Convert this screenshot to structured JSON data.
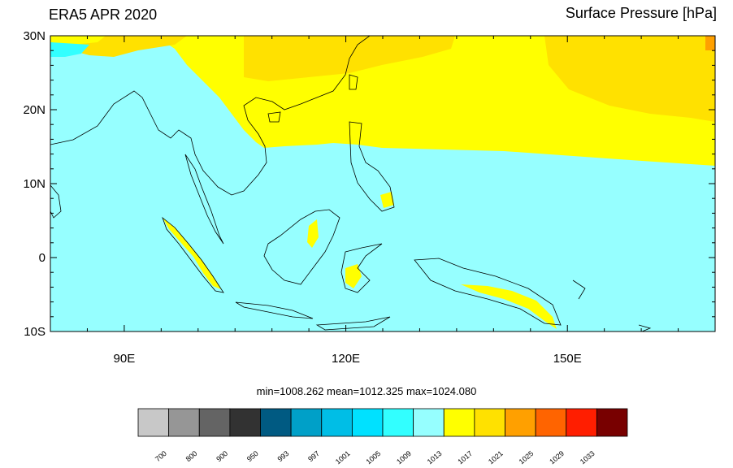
{
  "header": {
    "left_title": "ERA5 APR 2020",
    "right_title": "Surface Pressure [hPa]"
  },
  "map": {
    "lat_ticks": [
      {
        "value": 30,
        "label": "30N"
      },
      {
        "value": 20,
        "label": "20N"
      },
      {
        "value": 10,
        "label": "10N"
      },
      {
        "value": 0,
        "label": "0"
      },
      {
        "value": -10,
        "label": "10S"
      }
    ],
    "lon_ticks": [
      {
        "value": 90,
        "label": "90E"
      },
      {
        "value": 120,
        "label": "120E"
      },
      {
        "value": 150,
        "label": "150E"
      }
    ],
    "extent": {
      "lon_min": 80,
      "lon_max": 170,
      "lat_min": -10,
      "lat_max": 30
    }
  },
  "stats": {
    "text": "min=1008.262  mean=1012.325  max=1024.080"
  },
  "colorbar": {
    "colors": [
      "#c8c8c8",
      "#969696",
      "#646464",
      "#323232",
      "#005a82",
      "#00a0c8",
      "#00bee6",
      "#00e1ff",
      "#32ffff",
      "#96ffff",
      "#ffff00",
      "#ffe100",
      "#ffa000",
      "#ff6400",
      "#ff1e00",
      "#780000"
    ],
    "labels": [
      "700",
      "800",
      "900",
      "950",
      "993",
      "997",
      "1001",
      "1005",
      "1009",
      "1013",
      "1017",
      "1021",
      "1025",
      "1029",
      "1033"
    ]
  }
}
